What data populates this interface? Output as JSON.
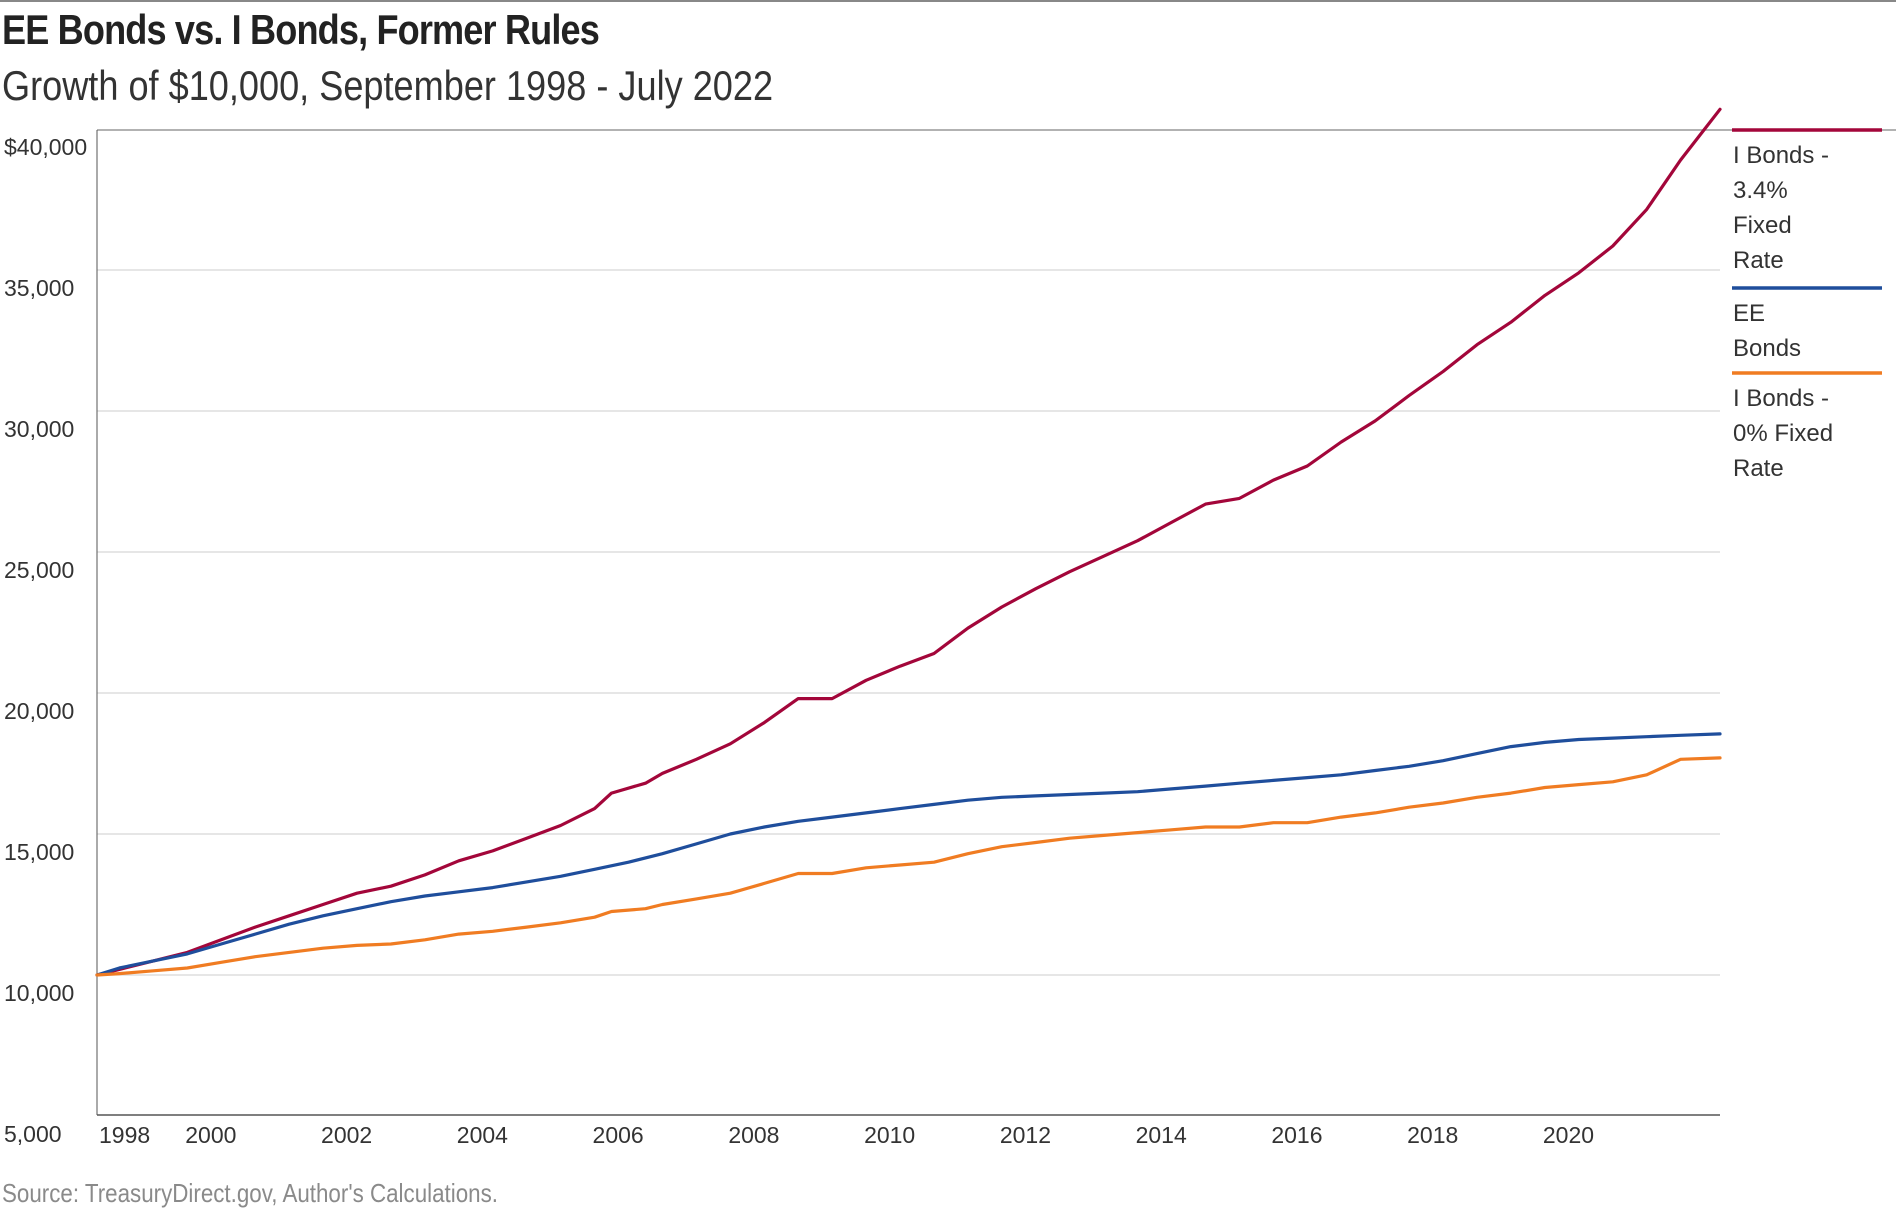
{
  "title": "EE Bonds vs. I Bonds, Former Rules",
  "subtitle": "Growth of $10,000, September 1998 - July 2022",
  "source": "Source: TreasuryDirect.gov, Author's Calculations.",
  "chart_data": {
    "type": "line",
    "title": "EE Bonds vs. I Bonds, Former Rules",
    "subtitle": "Growth of $10,000, September 1998 - July 2022",
    "xlabel": "",
    "ylabel": "",
    "xlim": [
      1998.67,
      2022.58
    ],
    "ylim": [
      4000,
      40000
    ],
    "grid": true,
    "legend_position": "right",
    "y_ticks": [
      {
        "value": 40000,
        "label": "$40,000"
      },
      {
        "value": 35000,
        "label": "35,000"
      },
      {
        "value": 30000,
        "label": "30,000"
      },
      {
        "value": 25000,
        "label": "25,000"
      },
      {
        "value": 20000,
        "label": "20,000"
      },
      {
        "value": 15000,
        "label": "15,000"
      },
      {
        "value": 10000,
        "label": "10,000"
      },
      {
        "value": 5000,
        "label": "5,000"
      }
    ],
    "x_ticks": [
      {
        "value": 1998.67,
        "label": "1998"
      },
      {
        "value": 2000,
        "label": "2000"
      },
      {
        "value": 2002,
        "label": "2002"
      },
      {
        "value": 2004,
        "label": "2004"
      },
      {
        "value": 2006,
        "label": "2006"
      },
      {
        "value": 2008,
        "label": "2008"
      },
      {
        "value": 2010,
        "label": "2010"
      },
      {
        "value": 2012,
        "label": "2012"
      },
      {
        "value": 2014,
        "label": "2014"
      },
      {
        "value": 2016,
        "label": "2016"
      },
      {
        "value": 2018,
        "label": "2018"
      },
      {
        "value": 2020,
        "label": "2020"
      }
    ],
    "series": [
      {
        "name": "I Bonds - 3.4% Fixed Rate",
        "legend_lines": [
          "I Bonds -",
          "3.4%",
          "Fixed",
          "Rate"
        ],
        "color": "#a3063a",
        "points": [
          [
            1998.67,
            10000
          ],
          [
            1999.0,
            10200
          ],
          [
            1999.5,
            10500
          ],
          [
            2000.0,
            10800
          ],
          [
            2000.5,
            11250
          ],
          [
            2001.0,
            11700
          ],
          [
            2001.5,
            12100
          ],
          [
            2002.0,
            12500
          ],
          [
            2002.5,
            12900
          ],
          [
            2003.0,
            13150
          ],
          [
            2003.5,
            13550
          ],
          [
            2004.0,
            14050
          ],
          [
            2004.5,
            14400
          ],
          [
            2005.0,
            14850
          ],
          [
            2005.5,
            15300
          ],
          [
            2006.0,
            15900
          ],
          [
            2006.25,
            16450
          ],
          [
            2006.75,
            16800
          ],
          [
            2007.0,
            17150
          ],
          [
            2007.5,
            17650
          ],
          [
            2008.0,
            18200
          ],
          [
            2008.5,
            18950
          ],
          [
            2009.0,
            19800
          ],
          [
            2009.5,
            19800
          ],
          [
            2010.0,
            20450
          ],
          [
            2010.5,
            20950
          ],
          [
            2011.0,
            21400
          ],
          [
            2011.5,
            22300
          ],
          [
            2012.0,
            23050
          ],
          [
            2012.5,
            23700
          ],
          [
            2013.0,
            24300
          ],
          [
            2013.5,
            24850
          ],
          [
            2014.0,
            25400
          ],
          [
            2014.5,
            26050
          ],
          [
            2015.0,
            26700
          ],
          [
            2015.5,
            26900
          ],
          [
            2016.0,
            27550
          ],
          [
            2016.5,
            28050
          ],
          [
            2017.0,
            28900
          ],
          [
            2017.5,
            29650
          ],
          [
            2018.0,
            30550
          ],
          [
            2018.5,
            31400
          ],
          [
            2019.0,
            32350
          ],
          [
            2019.5,
            33150
          ],
          [
            2020.0,
            34100
          ],
          [
            2020.5,
            34900
          ],
          [
            2021.0,
            35850
          ],
          [
            2021.5,
            37150
          ],
          [
            2022.0,
            38900
          ],
          [
            2022.58,
            40700
          ]
        ]
      },
      {
        "name": "EE Bonds",
        "legend_lines": [
          "EE",
          "Bonds"
        ],
        "color": "#1f4e9c",
        "points": [
          [
            1998.67,
            10000
          ],
          [
            1999.0,
            10250
          ],
          [
            1999.5,
            10500
          ],
          [
            2000.0,
            10750
          ],
          [
            2000.5,
            11100
          ],
          [
            2001.0,
            11450
          ],
          [
            2001.5,
            11800
          ],
          [
            2002.0,
            12100
          ],
          [
            2002.5,
            12350
          ],
          [
            2003.0,
            12600
          ],
          [
            2003.5,
            12800
          ],
          [
            2004.0,
            12950
          ],
          [
            2004.5,
            13100
          ],
          [
            2005.0,
            13300
          ],
          [
            2005.5,
            13500
          ],
          [
            2006.0,
            13750
          ],
          [
            2006.5,
            14000
          ],
          [
            2007.0,
            14300
          ],
          [
            2007.5,
            14650
          ],
          [
            2008.0,
            15000
          ],
          [
            2008.5,
            15250
          ],
          [
            2009.0,
            15450
          ],
          [
            2009.5,
            15600
          ],
          [
            2010.0,
            15750
          ],
          [
            2010.5,
            15900
          ],
          [
            2011.0,
            16050
          ],
          [
            2011.5,
            16200
          ],
          [
            2012.0,
            16300
          ],
          [
            2012.5,
            16350
          ],
          [
            2013.0,
            16400
          ],
          [
            2013.5,
            16450
          ],
          [
            2014.0,
            16500
          ],
          [
            2014.5,
            16600
          ],
          [
            2015.0,
            16700
          ],
          [
            2015.5,
            16800
          ],
          [
            2016.0,
            16900
          ],
          [
            2016.5,
            17000
          ],
          [
            2017.0,
            17100
          ],
          [
            2017.5,
            17250
          ],
          [
            2018.0,
            17400
          ],
          [
            2018.5,
            17600
          ],
          [
            2019.0,
            17850
          ],
          [
            2019.5,
            18100
          ],
          [
            2020.0,
            18250
          ],
          [
            2020.5,
            18350
          ],
          [
            2021.0,
            18400
          ],
          [
            2021.5,
            18450
          ],
          [
            2022.0,
            18500
          ],
          [
            2022.58,
            18550
          ]
        ]
      },
      {
        "name": "I Bonds - 0% Fixed Rate",
        "legend_lines": [
          "I Bonds -",
          "0% Fixed",
          "Rate"
        ],
        "color": "#f07c22",
        "points": [
          [
            1998.67,
            10000
          ],
          [
            1999.0,
            10050
          ],
          [
            1999.5,
            10150
          ],
          [
            2000.0,
            10250
          ],
          [
            2000.5,
            10450
          ],
          [
            2001.0,
            10650
          ],
          [
            2001.5,
            10800
          ],
          [
            2002.0,
            10950
          ],
          [
            2002.5,
            11050
          ],
          [
            2003.0,
            11100
          ],
          [
            2003.5,
            11250
          ],
          [
            2004.0,
            11450
          ],
          [
            2004.5,
            11550
          ],
          [
            2005.0,
            11700
          ],
          [
            2005.5,
            11850
          ],
          [
            2006.0,
            12050
          ],
          [
            2006.25,
            12250
          ],
          [
            2006.75,
            12350
          ],
          [
            2007.0,
            12500
          ],
          [
            2007.5,
            12700
          ],
          [
            2008.0,
            12900
          ],
          [
            2008.5,
            13250
          ],
          [
            2009.0,
            13600
          ],
          [
            2009.5,
            13600
          ],
          [
            2010.0,
            13800
          ],
          [
            2010.5,
            13900
          ],
          [
            2011.0,
            14000
          ],
          [
            2011.5,
            14300
          ],
          [
            2012.0,
            14550
          ],
          [
            2012.5,
            14700
          ],
          [
            2013.0,
            14850
          ],
          [
            2013.5,
            14950
          ],
          [
            2014.0,
            15050
          ],
          [
            2014.5,
            15150
          ],
          [
            2015.0,
            15250
          ],
          [
            2015.5,
            15250
          ],
          [
            2016.0,
            15400
          ],
          [
            2016.5,
            15400
          ],
          [
            2017.0,
            15600
          ],
          [
            2017.5,
            15750
          ],
          [
            2018.0,
            15950
          ],
          [
            2018.5,
            16100
          ],
          [
            2019.0,
            16300
          ],
          [
            2019.5,
            16450
          ],
          [
            2020.0,
            16650
          ],
          [
            2020.5,
            16750
          ],
          [
            2021.0,
            16850
          ],
          [
            2021.5,
            17100
          ],
          [
            2022.0,
            17650
          ],
          [
            2022.58,
            17700
          ]
        ]
      }
    ]
  }
}
